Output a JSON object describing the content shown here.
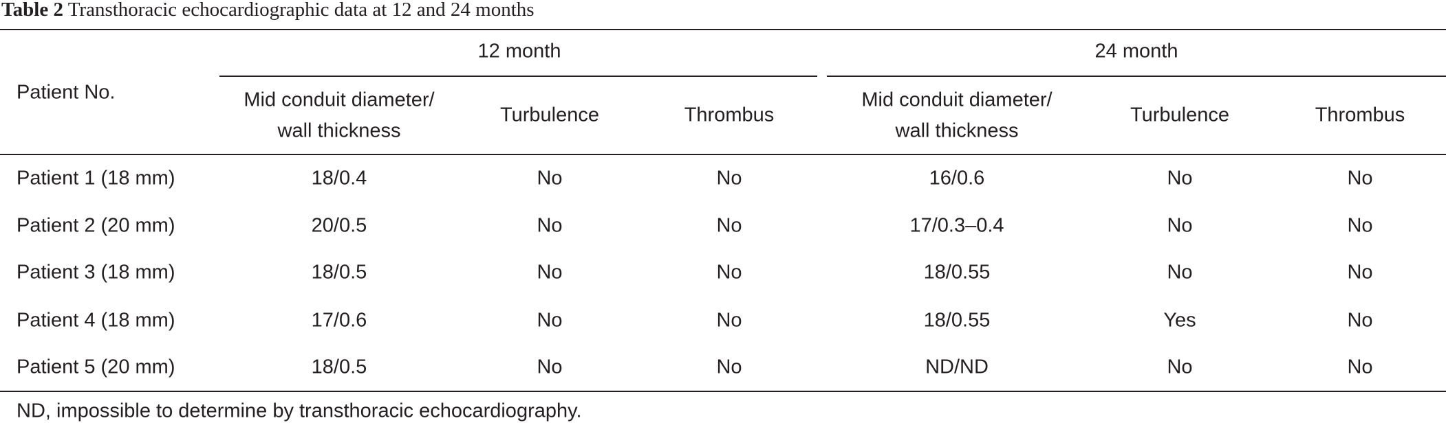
{
  "title": {
    "label": "Table 2",
    "text": "Transthoracic echocardiographic data at 12 and 24 months"
  },
  "table": {
    "row_header": "Patient No.",
    "groups": [
      "12 month",
      "24 month"
    ],
    "columns": [
      [
        "Mid conduit diameter/",
        "wall thickness"
      ],
      [
        "Turbulence"
      ],
      [
        "Thrombus"
      ],
      [
        "Mid conduit diameter/",
        "wall thickness"
      ],
      [
        "Turbulence"
      ],
      [
        "Thrombus"
      ]
    ],
    "rows": [
      [
        "Patient 1 (18 mm)",
        "18/0.4",
        "No",
        "No",
        "16/0.6",
        "No",
        "No"
      ],
      [
        "Patient 2 (20 mm)",
        "20/0.5",
        "No",
        "No",
        "17/0.3–0.4",
        "No",
        "No"
      ],
      [
        "Patient 3 (18 mm)",
        "18/0.5",
        "No",
        "No",
        "18/0.55",
        "No",
        "No"
      ],
      [
        "Patient 4 (18 mm)",
        "17/0.6",
        "No",
        "No",
        "18/0.55",
        "Yes",
        "No"
      ],
      [
        "Patient 5 (20 mm)",
        "18/0.5",
        "No",
        "No",
        "ND/ND",
        "No",
        "No"
      ]
    ]
  },
  "footnote": "ND, impossible to determine by transthoracic echocardiography."
}
